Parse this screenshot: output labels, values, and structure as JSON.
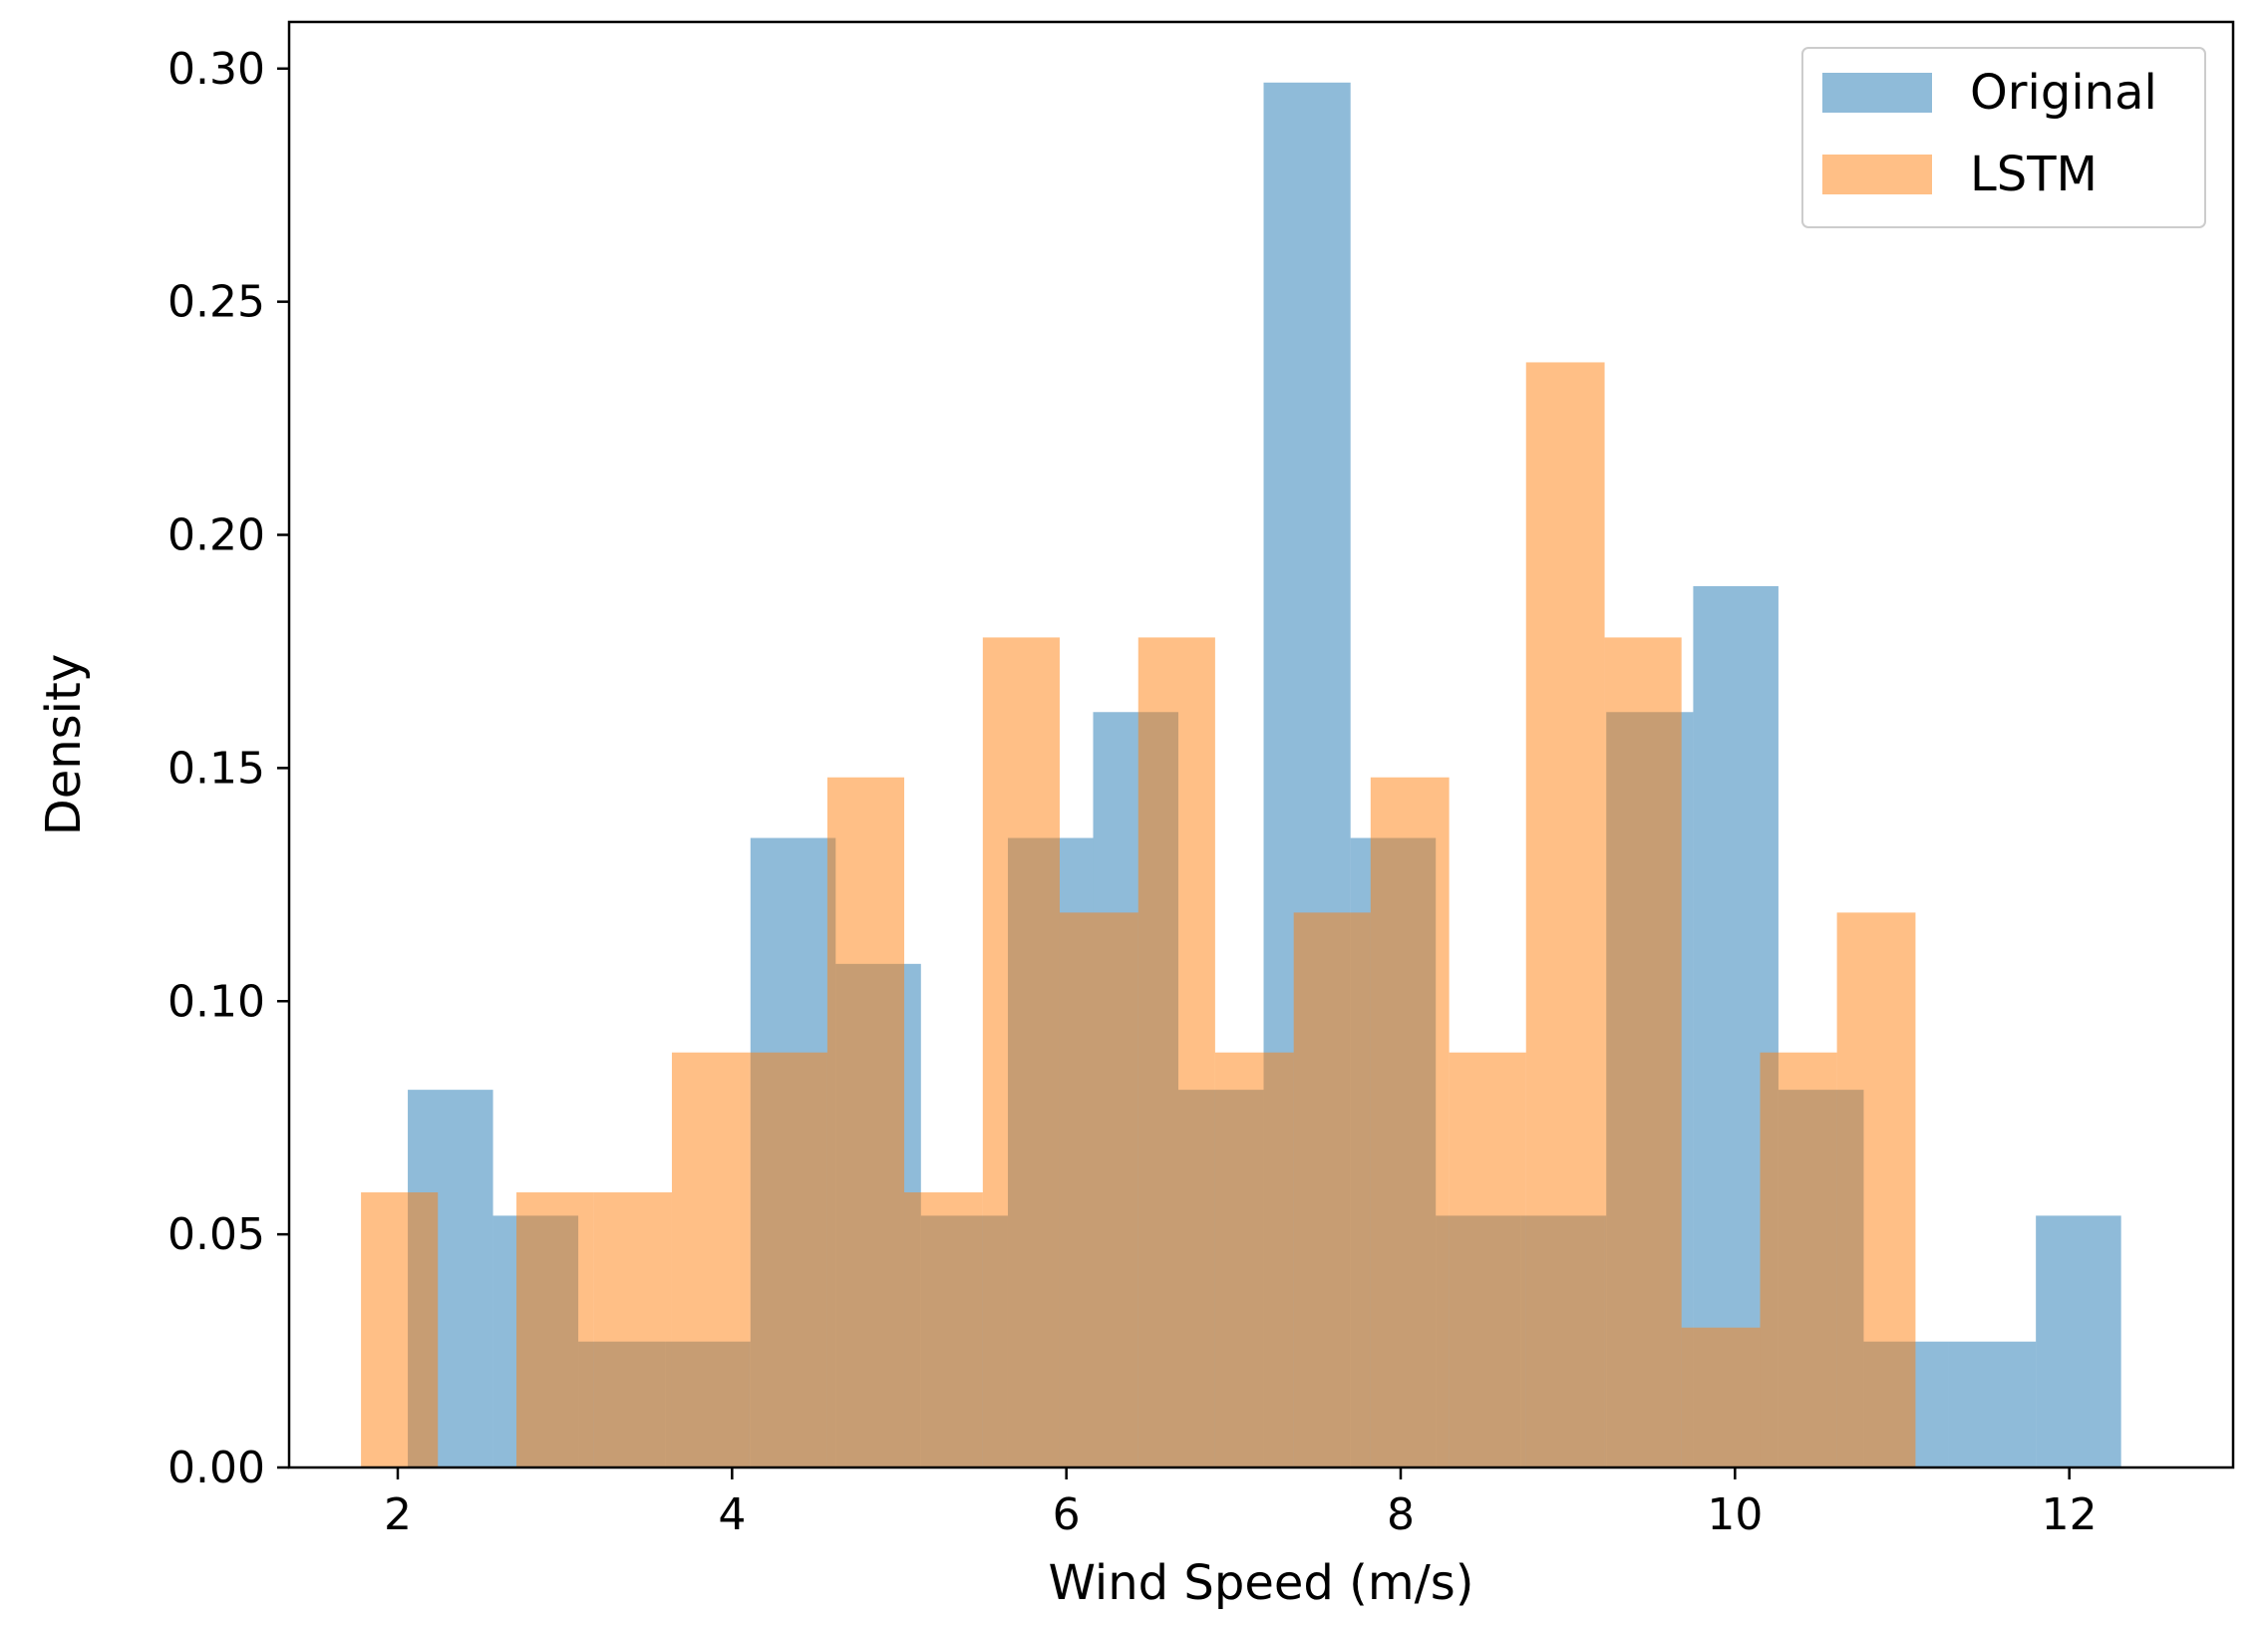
{
  "chart_data": {
    "type": "histogram",
    "xlabel": "Wind Speed (m/s)",
    "ylabel": "Density",
    "xlim": [
      1.35,
      12.98
    ],
    "ylim": [
      0,
      0.31
    ],
    "xticks": [
      {
        "value": 2,
        "label": "2"
      },
      {
        "value": 4,
        "label": "4"
      },
      {
        "value": 6,
        "label": "6"
      },
      {
        "value": 8,
        "label": "8"
      },
      {
        "value": 10,
        "label": "10"
      },
      {
        "value": 12,
        "label": "12"
      }
    ],
    "yticks": [
      {
        "value": 0.0,
        "label": "0.00"
      },
      {
        "value": 0.05,
        "label": "0.05"
      },
      {
        "value": 0.1,
        "label": "0.10"
      },
      {
        "value": 0.15,
        "label": "0.15"
      },
      {
        "value": 0.2,
        "label": "0.20"
      },
      {
        "value": 0.25,
        "label": "0.25"
      },
      {
        "value": 0.3,
        "label": "0.30"
      }
    ],
    "legend_position": "top-right",
    "series": [
      {
        "name": "Original",
        "color": "#1f77b4",
        "opacity": 0.5,
        "bins": [
          {
            "x0": 2.06,
            "x1": 2.57,
            "y": 0.081
          },
          {
            "x0": 2.57,
            "x1": 3.08,
            "y": 0.054
          },
          {
            "x0": 3.08,
            "x1": 3.6,
            "y": 0.027
          },
          {
            "x0": 3.6,
            "x1": 4.11,
            "y": 0.027
          },
          {
            "x0": 4.11,
            "x1": 4.62,
            "y": 0.135
          },
          {
            "x0": 4.62,
            "x1": 5.13,
            "y": 0.108
          },
          {
            "x0": 5.13,
            "x1": 5.65,
            "y": 0.054
          },
          {
            "x0": 5.65,
            "x1": 6.16,
            "y": 0.135
          },
          {
            "x0": 6.16,
            "x1": 6.67,
            "y": 0.162
          },
          {
            "x0": 6.67,
            "x1": 7.18,
            "y": 0.081
          },
          {
            "x0": 7.18,
            "x1": 7.7,
            "y": 0.297
          },
          {
            "x0": 7.7,
            "x1": 8.21,
            "y": 0.135
          },
          {
            "x0": 8.21,
            "x1": 8.72,
            "y": 0.054
          },
          {
            "x0": 8.72,
            "x1": 9.23,
            "y": 0.054
          },
          {
            "x0": 9.23,
            "x1": 9.75,
            "y": 0.162
          },
          {
            "x0": 9.75,
            "x1": 10.26,
            "y": 0.189
          },
          {
            "x0": 10.26,
            "x1": 10.77,
            "y": 0.081
          },
          {
            "x0": 10.77,
            "x1": 11.28,
            "y": 0.027
          },
          {
            "x0": 11.28,
            "x1": 11.8,
            "y": 0.027
          },
          {
            "x0": 11.8,
            "x1": 12.31,
            "y": 0.054
          }
        ]
      },
      {
        "name": "LSTM",
        "color": "#ff7f0e",
        "opacity": 0.5,
        "bins": [
          {
            "x0": 1.78,
            "x1": 2.24,
            "y": 0.059
          },
          {
            "x0": 2.24,
            "x1": 2.71,
            "y": 0.0
          },
          {
            "x0": 2.71,
            "x1": 3.17,
            "y": 0.059
          },
          {
            "x0": 3.17,
            "x1": 3.64,
            "y": 0.059
          },
          {
            "x0": 3.64,
            "x1": 4.1,
            "y": 0.089
          },
          {
            "x0": 4.1,
            "x1": 4.57,
            "y": 0.089
          },
          {
            "x0": 4.57,
            "x1": 5.03,
            "y": 0.148
          },
          {
            "x0": 5.03,
            "x1": 5.5,
            "y": 0.059
          },
          {
            "x0": 5.5,
            "x1": 5.96,
            "y": 0.178
          },
          {
            "x0": 5.96,
            "x1": 6.43,
            "y": 0.119
          },
          {
            "x0": 6.43,
            "x1": 6.89,
            "y": 0.178
          },
          {
            "x0": 6.89,
            "x1": 7.36,
            "y": 0.089
          },
          {
            "x0": 7.36,
            "x1": 7.82,
            "y": 0.119
          },
          {
            "x0": 7.82,
            "x1": 8.29,
            "y": 0.148
          },
          {
            "x0": 8.29,
            "x1": 8.75,
            "y": 0.089
          },
          {
            "x0": 8.75,
            "x1": 9.22,
            "y": 0.237
          },
          {
            "x0": 9.22,
            "x1": 9.68,
            "y": 0.178
          },
          {
            "x0": 9.68,
            "x1": 10.15,
            "y": 0.03
          },
          {
            "x0": 10.15,
            "x1": 10.61,
            "y": 0.089
          },
          {
            "x0": 10.61,
            "x1": 11.08,
            "y": 0.119
          }
        ]
      }
    ]
  }
}
